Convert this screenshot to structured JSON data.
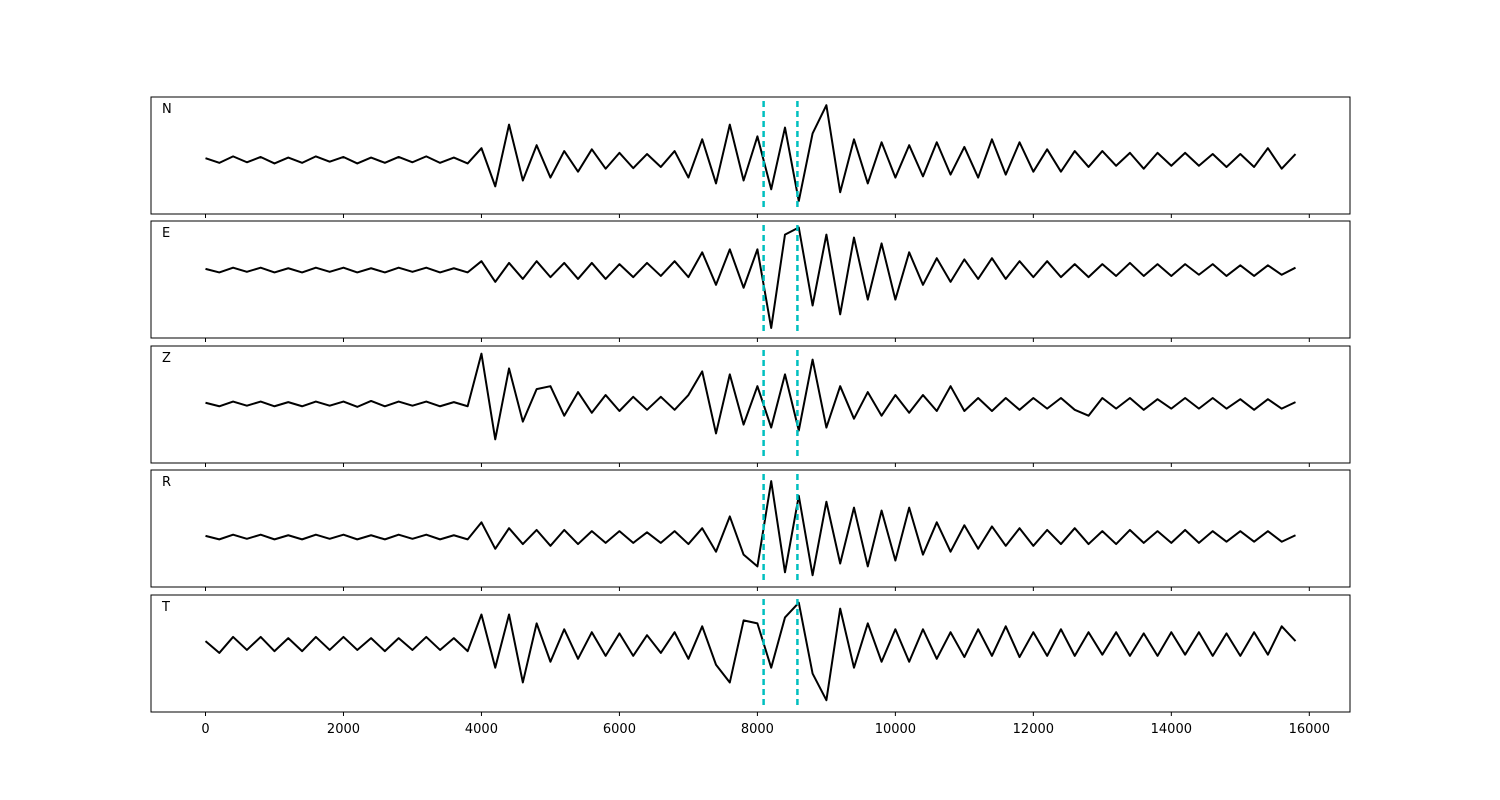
{
  "chart_data": {
    "type": "line",
    "x": [
      0,
      200,
      400,
      600,
      800,
      1000,
      1200,
      1400,
      1600,
      1800,
      2000,
      2200,
      2400,
      2600,
      2800,
      3000,
      3200,
      3400,
      3600,
      3800,
      4000,
      4200,
      4400,
      4600,
      4800,
      5000,
      5200,
      5400,
      5600,
      5800,
      6000,
      6200,
      6400,
      6600,
      6800,
      7000,
      7200,
      7400,
      7600,
      7800,
      8000,
      8200,
      8400,
      8600,
      8800,
      9000,
      9200,
      9400,
      9600,
      9800,
      10000,
      10200,
      10400,
      10600,
      10800,
      11000,
      11200,
      11400,
      11600,
      11800,
      12000,
      12200,
      12400,
      12600,
      12800,
      13000,
      13200,
      13400,
      13600,
      13800,
      14000,
      14200,
      14400,
      14600,
      14800,
      15000,
      15200,
      15400,
      15600,
      15800
    ],
    "xlim": [
      -790,
      16590
    ],
    "xticks": [
      0,
      2000,
      4000,
      6000,
      8000,
      10000,
      12000,
      14000,
      16000
    ],
    "vlines": [
      8090,
      8580
    ],
    "vline_color": "#00bfbf",
    "series": [
      {
        "name": "N",
        "color": "#000000",
        "ylim": [
          -0.92,
          1.07
        ],
        "values": [
          0.03,
          -0.05,
          0.06,
          -0.04,
          0.05,
          -0.06,
          0.04,
          -0.05,
          0.06,
          -0.03,
          0.05,
          -0.06,
          0.04,
          -0.05,
          0.05,
          -0.04,
          0.06,
          -0.05,
          0.04,
          -0.06,
          0.2,
          -0.45,
          0.6,
          -0.35,
          0.25,
          -0.3,
          0.15,
          -0.2,
          0.18,
          -0.15,
          0.12,
          -0.14,
          0.1,
          -0.12,
          0.15,
          -0.3,
          0.35,
          -0.4,
          0.6,
          -0.35,
          0.4,
          -0.5,
          0.55,
          -0.7,
          0.45,
          0.93,
          -0.55,
          0.35,
          -0.4,
          0.3,
          -0.3,
          0.25,
          -0.28,
          0.3,
          -0.25,
          0.22,
          -0.3,
          0.35,
          -0.25,
          0.3,
          -0.2,
          0.18,
          -0.2,
          0.15,
          -0.12,
          0.15,
          -0.1,
          0.12,
          -0.15,
          0.12,
          -0.1,
          0.12,
          -0.1,
          0.1,
          -0.12,
          0.1,
          -0.12,
          0.2,
          -0.15,
          0.1
        ]
      },
      {
        "name": "E",
        "color": "#000000",
        "ylim": [
          -1.15,
          0.83
        ],
        "values": [
          0.02,
          -0.04,
          0.04,
          -0.03,
          0.04,
          -0.04,
          0.03,
          -0.04,
          0.04,
          -0.03,
          0.04,
          -0.04,
          0.03,
          -0.04,
          0.04,
          -0.03,
          0.04,
          -0.04,
          0.03,
          -0.04,
          0.15,
          -0.2,
          0.12,
          -0.15,
          0.15,
          -0.12,
          0.12,
          -0.15,
          0.12,
          -0.15,
          0.1,
          -0.12,
          0.12,
          -0.1,
          0.15,
          -0.12,
          0.3,
          -0.25,
          0.35,
          -0.3,
          0.35,
          -0.98,
          0.6,
          0.72,
          -0.6,
          0.6,
          -0.75,
          0.55,
          -0.5,
          0.45,
          -0.5,
          0.3,
          -0.25,
          0.2,
          -0.2,
          0.18,
          -0.15,
          0.2,
          -0.15,
          0.15,
          -0.12,
          0.15,
          -0.12,
          0.1,
          -0.12,
          0.1,
          -0.1,
          0.12,
          -0.1,
          0.1,
          -0.1,
          0.1,
          -0.08,
          0.1,
          -0.1,
          0.08,
          -0.1,
          0.08,
          -0.08,
          0.04
        ]
      },
      {
        "name": "Z",
        "color": "#000000",
        "ylim": [
          -1.0,
          0.98
        ],
        "values": [
          0.02,
          -0.04,
          0.04,
          -0.03,
          0.04,
          -0.04,
          0.03,
          -0.04,
          0.04,
          -0.03,
          0.04,
          -0.05,
          0.05,
          -0.04,
          0.04,
          -0.03,
          0.04,
          -0.04,
          0.03,
          -0.04,
          0.85,
          -0.6,
          0.6,
          -0.3,
          0.25,
          0.3,
          -0.2,
          0.2,
          -0.15,
          0.15,
          -0.12,
          0.12,
          -0.1,
          0.12,
          -0.1,
          0.15,
          0.55,
          -0.5,
          0.5,
          -0.35,
          0.3,
          -0.4,
          0.5,
          -0.45,
          0.75,
          -0.4,
          0.3,
          -0.25,
          0.2,
          -0.2,
          0.15,
          -0.15,
          0.15,
          -0.12,
          0.3,
          -0.12,
          0.1,
          -0.12,
          0.1,
          -0.1,
          0.1,
          -0.08,
          0.1,
          -0.1,
          -0.2,
          0.1,
          -0.08,
          0.1,
          -0.1,
          0.08,
          -0.08,
          0.1,
          -0.08,
          0.1,
          -0.08,
          0.08,
          -0.1,
          0.08,
          -0.08,
          0.03
        ]
      },
      {
        "name": "R",
        "color": "#000000",
        "ylim": [
          -0.85,
          1.14
        ],
        "values": [
          0.02,
          -0.04,
          0.04,
          -0.03,
          0.04,
          -0.04,
          0.03,
          -0.04,
          0.04,
          -0.03,
          0.04,
          -0.04,
          0.03,
          -0.04,
          0.04,
          -0.03,
          0.04,
          -0.04,
          0.03,
          -0.04,
          0.25,
          -0.2,
          0.15,
          -0.12,
          0.12,
          -0.15,
          0.12,
          -0.12,
          0.1,
          -0.1,
          0.1,
          -0.1,
          0.08,
          -0.1,
          0.1,
          -0.12,
          0.15,
          -0.25,
          0.35,
          -0.3,
          -0.5,
          0.95,
          -0.6,
          0.7,
          -0.65,
          0.6,
          -0.45,
          0.5,
          -0.5,
          0.45,
          -0.4,
          0.5,
          -0.3,
          0.25,
          -0.25,
          0.2,
          -0.2,
          0.18,
          -0.15,
          0.15,
          -0.15,
          0.12,
          -0.12,
          0.15,
          -0.12,
          0.1,
          -0.12,
          0.12,
          -0.1,
          0.1,
          -0.1,
          0.12,
          -0.1,
          0.1,
          -0.08,
          0.1,
          -0.08,
          0.1,
          -0.08,
          0.03
        ]
      },
      {
        "name": "T",
        "color": "#000000",
        "ylim": [
          -1.15,
          0.83
        ],
        "values": [
          0.05,
          -0.15,
          0.12,
          -0.1,
          0.12,
          -0.12,
          0.1,
          -0.12,
          0.12,
          -0.1,
          0.12,
          -0.1,
          0.1,
          -0.12,
          0.1,
          -0.1,
          0.12,
          -0.1,
          0.1,
          -0.12,
          0.5,
          -0.4,
          0.5,
          -0.65,
          0.35,
          -0.3,
          0.25,
          -0.25,
          0.2,
          -0.2,
          0.18,
          -0.2,
          0.15,
          -0.15,
          0.2,
          -0.25,
          0.3,
          -0.35,
          -0.65,
          0.4,
          0.35,
          -0.4,
          0.45,
          0.7,
          -0.5,
          -0.95,
          0.6,
          -0.4,
          0.35,
          -0.3,
          0.25,
          -0.3,
          0.25,
          -0.25,
          0.2,
          -0.22,
          0.25,
          -0.2,
          0.3,
          -0.22,
          0.2,
          -0.2,
          0.25,
          -0.2,
          0.2,
          -0.18,
          0.2,
          -0.2,
          0.18,
          -0.2,
          0.2,
          -0.18,
          0.2,
          -0.2,
          0.18,
          -0.2,
          0.2,
          -0.18,
          0.3,
          0.05
        ]
      }
    ]
  }
}
